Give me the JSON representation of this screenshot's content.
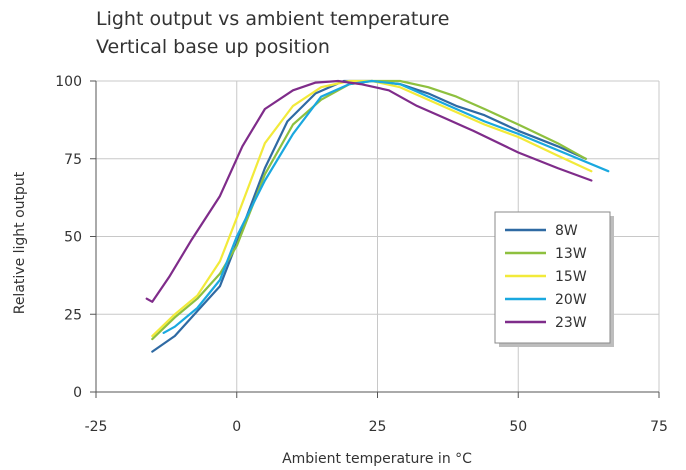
{
  "chart_data": {
    "type": "line",
    "title": "Light output vs ambient temperature",
    "subtitle": "Vertical base up position",
    "xlabel": "Ambient temperature in °C",
    "ylabel": "Relative light output",
    "xlim": [
      -25,
      75
    ],
    "ylim": [
      0,
      100
    ],
    "xticks": [
      "-25",
      "0",
      "25",
      "50",
      "75"
    ],
    "yticks": [
      "0",
      "25",
      "50",
      "75",
      "100"
    ],
    "grid": true,
    "legend_position": "right",
    "series": [
      {
        "name": "8W",
        "color": "#2f6aa3",
        "points": [
          [
            -15,
            13
          ],
          [
            -11,
            18
          ],
          [
            -7,
            26
          ],
          [
            -3,
            34
          ],
          [
            0,
            48
          ],
          [
            5,
            72
          ],
          [
            9,
            87
          ],
          [
            14,
            96
          ],
          [
            19,
            100
          ],
          [
            24,
            100
          ],
          [
            29,
            99
          ],
          [
            34,
            96
          ],
          [
            39,
            92
          ],
          [
            44,
            89
          ],
          [
            50,
            84
          ],
          [
            57,
            79
          ],
          [
            62,
            75
          ]
        ]
      },
      {
        "name": "13W",
        "color": "#8ec03f",
        "points": [
          [
            -15,
            17
          ],
          [
            -11,
            24
          ],
          [
            -7,
            30
          ],
          [
            -3,
            38
          ],
          [
            0,
            47
          ],
          [
            5,
            70
          ],
          [
            10,
            86
          ],
          [
            15,
            94
          ],
          [
            20,
            99
          ],
          [
            24,
            100
          ],
          [
            29,
            100
          ],
          [
            34,
            98
          ],
          [
            39,
            95
          ],
          [
            44,
            91
          ],
          [
            50,
            86
          ],
          [
            57,
            80
          ],
          [
            62,
            75
          ]
        ]
      },
      {
        "name": "15W",
        "color": "#f2ea3a",
        "points": [
          [
            -15,
            18
          ],
          [
            -11,
            25
          ],
          [
            -7,
            31
          ],
          [
            -3,
            42
          ],
          [
            0,
            56
          ],
          [
            5,
            80
          ],
          [
            10,
            92
          ],
          [
            15,
            98
          ],
          [
            20,
            100
          ],
          [
            24,
            100
          ],
          [
            29,
            98
          ],
          [
            34,
            94
          ],
          [
            39,
            90
          ],
          [
            44,
            86
          ],
          [
            50,
            82
          ],
          [
            57,
            76
          ],
          [
            63,
            71
          ]
        ]
      },
      {
        "name": "20W",
        "color": "#1aa8df",
        "points": [
          [
            -13,
            19
          ],
          [
            -11,
            21
          ],
          [
            -7,
            27
          ],
          [
            -3,
            36
          ],
          [
            0,
            50
          ],
          [
            5,
            68
          ],
          [
            10,
            83
          ],
          [
            15,
            95
          ],
          [
            20,
            99
          ],
          [
            24,
            100
          ],
          [
            29,
            99
          ],
          [
            34,
            95
          ],
          [
            39,
            91
          ],
          [
            44,
            87
          ],
          [
            50,
            83
          ],
          [
            58,
            77
          ],
          [
            66,
            71
          ]
        ]
      },
      {
        "name": "23W",
        "color": "#7f2c8a",
        "points": [
          [
            -16,
            30
          ],
          [
            -15,
            29
          ],
          [
            -12,
            37
          ],
          [
            -8,
            49
          ],
          [
            -3,
            63
          ],
          [
            1,
            79
          ],
          [
            5,
            91
          ],
          [
            10,
            97
          ],
          [
            14,
            99.5
          ],
          [
            18,
            100
          ],
          [
            22,
            99
          ],
          [
            27,
            97
          ],
          [
            32,
            92
          ],
          [
            37,
            88
          ],
          [
            42,
            84
          ],
          [
            50,
            77
          ],
          [
            57,
            72
          ],
          [
            63,
            68
          ]
        ]
      }
    ]
  }
}
